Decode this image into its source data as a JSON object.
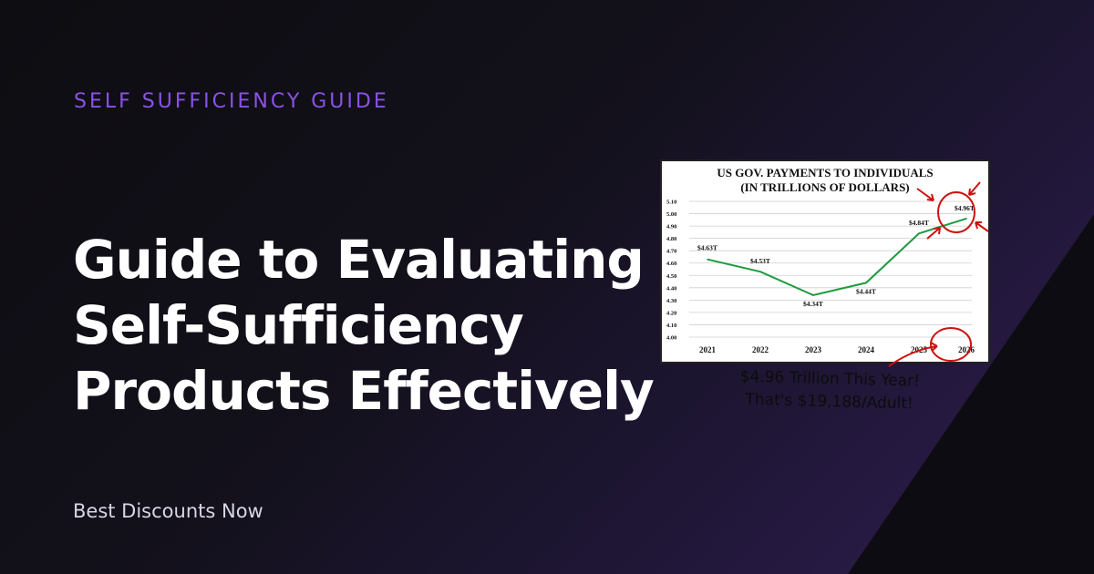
{
  "header": {
    "kicker": "SELF SUFFICIENCY GUIDE"
  },
  "headline": {
    "lines": [
      "Guide to Evaluating",
      "Self-Sufficiency",
      "Products Effectively"
    ]
  },
  "footer": {
    "link_label": "Best Discounts Now"
  },
  "colors": {
    "kicker": "#8a52e6",
    "line": "#1f9a3f",
    "annotation": "#cc1111"
  },
  "note": {
    "line1": "$4.96 Trillion This Year!",
    "line2": "That's $19,188/Adult!"
  },
  "chart_data": {
    "type": "line",
    "title": "US GOV. PAYMENTS TO INDIVIDUALS",
    "subtitle": "(IN TRILLIONS OF DOLLARS)",
    "x": [
      "2021",
      "2022",
      "2023",
      "2024",
      "2025",
      "2026"
    ],
    "series": [
      {
        "values": [
          4.63,
          4.53,
          4.34,
          4.44,
          4.84,
          4.96
        ]
      }
    ],
    "data_labels": [
      "$4.63T",
      "$4.53T",
      "$4.34T",
      "$4.44T",
      "$4.84T",
      "$4.96T"
    ],
    "y_ticks": [
      "4.00",
      "4.10",
      "4.20",
      "4.30",
      "4.40",
      "4.50",
      "4.60",
      "4.70",
      "4.80",
      "4.90",
      "5.00",
      "5.10"
    ],
    "ylim": [
      4.0,
      5.1
    ],
    "grid": true,
    "legend": "none"
  }
}
